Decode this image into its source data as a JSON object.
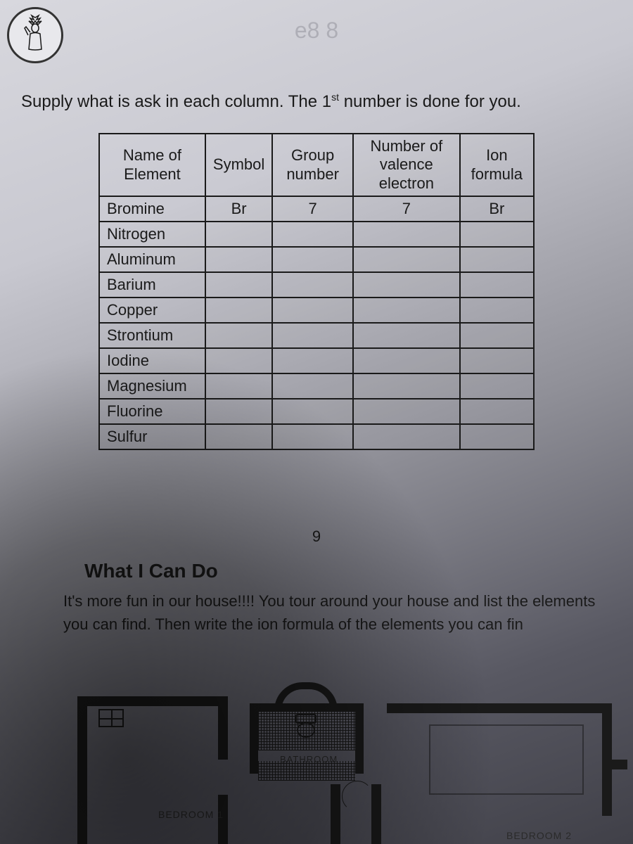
{
  "watermark": "e8 8",
  "instruction_prefix": "Supply what is ask in each column. The 1",
  "instruction_sup": "st",
  "instruction_suffix": " number is done for you.",
  "table": {
    "headers": [
      "Name of Element",
      "Symbol",
      "Group number",
      "Number of valence electron",
      "Ion formula"
    ],
    "rows": [
      {
        "name": "Bromine",
        "symbol": "Br",
        "group": "7",
        "valence": "7",
        "ion": "Br"
      },
      {
        "name": "Nitrogen",
        "symbol": "",
        "group": "",
        "valence": "",
        "ion": ""
      },
      {
        "name": "Aluminum",
        "symbol": "",
        "group": "",
        "valence": "",
        "ion": ""
      },
      {
        "name": "Barium",
        "symbol": "",
        "group": "",
        "valence": "",
        "ion": ""
      },
      {
        "name": "Copper",
        "symbol": "",
        "group": "",
        "valence": "",
        "ion": ""
      },
      {
        "name": "Strontium",
        "symbol": "",
        "group": "",
        "valence": "",
        "ion": ""
      },
      {
        "name": "Iodine",
        "symbol": "",
        "group": "",
        "valence": "",
        "ion": ""
      },
      {
        "name": "Magnesium",
        "symbol": "",
        "group": "",
        "valence": "",
        "ion": ""
      },
      {
        "name": "Fluorine",
        "symbol": "",
        "group": "",
        "valence": "",
        "ion": ""
      },
      {
        "name": "Sulfur",
        "symbol": "",
        "group": "",
        "valence": "",
        "ion": ""
      }
    ]
  },
  "page_number": "9",
  "section_title": "What I Can Do",
  "body_text": "It's more fun in our house!!!! You tour around your house and list the elements you can find. Then write the ion formula of the elements you can fin",
  "floorplan": {
    "bathroom_label": "BATHROOM",
    "bedroom1_label": "BEDROOM 1",
    "bedroom2_label": "BEDROOM 2"
  }
}
